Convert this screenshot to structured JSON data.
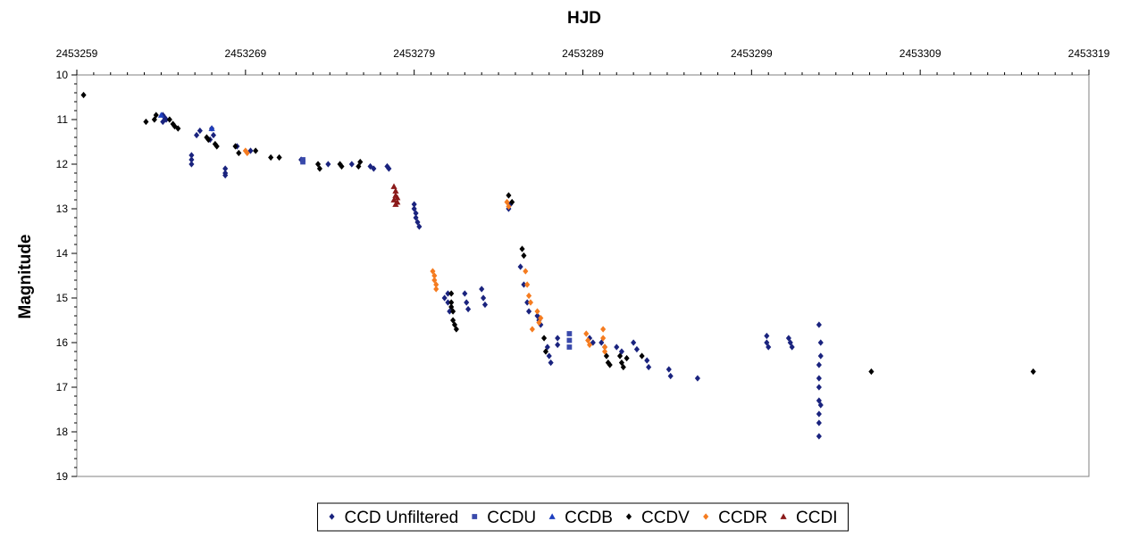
{
  "chart_data": {
    "type": "scatter",
    "title": "",
    "xlabel": "HJD",
    "ylabel": "Magnitude",
    "x_axis_position": "top",
    "y_axis_inverted": true,
    "xlim": [
      2453259,
      2453319
    ],
    "ylim": [
      10,
      19
    ],
    "xticks": [
      2453259,
      2453269,
      2453279,
      2453289,
      2453299,
      2453309,
      2453319
    ],
    "x_minor_step": 1,
    "yticks": [
      10,
      11,
      12,
      13,
      14,
      15,
      16,
      17,
      18,
      19
    ],
    "y_minor_step": 0.2,
    "grid": false,
    "legend_placement": "bottom-center",
    "series": [
      {
        "name": "CCD Unfiltered",
        "marker": "diamond",
        "color": "#1a237e",
        "points": [
          [
            2453264.1,
            10.9
          ],
          [
            2453264.3,
            11.0
          ],
          [
            2453264.1,
            11.05
          ],
          [
            2453264.2,
            10.95
          ],
          [
            2453266.1,
            11.35
          ],
          [
            2453266.3,
            11.25
          ],
          [
            2453267.0,
            11.2
          ],
          [
            2453267.1,
            11.35
          ],
          [
            2453266.9,
            11.45
          ],
          [
            2453265.8,
            11.8
          ],
          [
            2453265.8,
            11.9
          ],
          [
            2453265.8,
            12.0
          ],
          [
            2453267.8,
            12.1
          ],
          [
            2453267.8,
            12.2
          ],
          [
            2453267.8,
            12.25
          ],
          [
            2453268.5,
            11.6
          ],
          [
            2453269.3,
            11.7
          ],
          [
            2453272.3,
            11.9
          ],
          [
            2453273.9,
            12.0
          ],
          [
            2453275.3,
            12.0
          ],
          [
            2453276.4,
            12.05
          ],
          [
            2453276.6,
            12.1
          ],
          [
            2453277.4,
            12.05
          ],
          [
            2453277.5,
            12.1
          ],
          [
            2453279.0,
            12.9
          ],
          [
            2453279.0,
            13.0
          ],
          [
            2453279.1,
            13.1
          ],
          [
            2453279.1,
            13.2
          ],
          [
            2453279.2,
            13.3
          ],
          [
            2453279.3,
            13.4
          ],
          [
            2453281.0,
            14.9
          ],
          [
            2453281.0,
            15.1
          ],
          [
            2453281.1,
            15.3
          ],
          [
            2453280.8,
            15.0
          ],
          [
            2453282.0,
            14.9
          ],
          [
            2453282.1,
            15.1
          ],
          [
            2453282.2,
            15.25
          ],
          [
            2453283.0,
            14.8
          ],
          [
            2453283.1,
            15.0
          ],
          [
            2453283.2,
            15.15
          ],
          [
            2453284.6,
            13.0
          ],
          [
            2453284.7,
            12.9
          ],
          [
            2453285.3,
            14.3
          ],
          [
            2453285.5,
            14.7
          ],
          [
            2453285.7,
            15.1
          ],
          [
            2453285.8,
            15.3
          ],
          [
            2453286.3,
            15.4
          ],
          [
            2453286.4,
            15.5
          ],
          [
            2453286.5,
            15.6
          ],
          [
            2453286.9,
            16.1
          ],
          [
            2453287.0,
            16.3
          ],
          [
            2453287.1,
            16.45
          ],
          [
            2453287.5,
            15.9
          ],
          [
            2453287.5,
            16.05
          ],
          [
            2453289.4,
            15.9
          ],
          [
            2453289.6,
            16.0
          ],
          [
            2453290.1,
            16.0
          ],
          [
            2453290.3,
            16.1
          ],
          [
            2453291.0,
            16.1
          ],
          [
            2453291.3,
            16.2
          ],
          [
            2453292.0,
            16.0
          ],
          [
            2453292.2,
            16.15
          ],
          [
            2453292.8,
            16.4
          ],
          [
            2453292.9,
            16.55
          ],
          [
            2453294.1,
            16.6
          ],
          [
            2453294.2,
            16.75
          ],
          [
            2453295.8,
            16.8
          ],
          [
            2453299.9,
            15.85
          ],
          [
            2453299.9,
            16.0
          ],
          [
            2453300.0,
            16.1
          ],
          [
            2453301.2,
            15.9
          ],
          [
            2453301.3,
            16.0
          ],
          [
            2453301.4,
            16.1
          ],
          [
            2453303.0,
            15.6
          ],
          [
            2453303.0,
            16.5
          ],
          [
            2453303.0,
            16.8
          ],
          [
            2453303.0,
            17.0
          ],
          [
            2453303.0,
            17.3
          ],
          [
            2453303.0,
            17.6
          ],
          [
            2453303.0,
            17.8
          ],
          [
            2453303.0,
            18.1
          ],
          [
            2453303.1,
            16.0
          ],
          [
            2453303.1,
            16.3
          ],
          [
            2453303.1,
            17.4
          ]
        ]
      },
      {
        "name": "CCDU",
        "marker": "square",
        "color": "#3949ab",
        "points": [
          [
            2453272.4,
            11.95
          ],
          [
            2453272.4,
            11.9
          ],
          [
            2453288.2,
            15.8
          ],
          [
            2453288.2,
            15.95
          ],
          [
            2453288.2,
            16.1
          ]
        ]
      },
      {
        "name": "CCDB",
        "marker": "triangle",
        "color": "#1e3fbf",
        "points": [
          [
            2453264.0,
            10.9
          ],
          [
            2453267.0,
            11.2
          ]
        ]
      },
      {
        "name": "CCDV",
        "marker": "diamond",
        "color": "#000000",
        "points": [
          [
            2453259.4,
            10.45
          ],
          [
            2453263.1,
            11.05
          ],
          [
            2453263.6,
            11.0
          ],
          [
            2453263.7,
            10.9
          ],
          [
            2453264.5,
            11.0
          ],
          [
            2453264.7,
            11.1
          ],
          [
            2453264.8,
            11.15
          ],
          [
            2453265.0,
            11.2
          ],
          [
            2453266.7,
            11.4
          ],
          [
            2453266.8,
            11.45
          ],
          [
            2453267.2,
            11.55
          ],
          [
            2453267.3,
            11.6
          ],
          [
            2453268.4,
            11.6
          ],
          [
            2453268.6,
            11.75
          ],
          [
            2453269.6,
            11.7
          ],
          [
            2453270.5,
            11.85
          ],
          [
            2453271.0,
            11.85
          ],
          [
            2453273.3,
            12.0
          ],
          [
            2453273.4,
            12.1
          ],
          [
            2453274.6,
            12.0
          ],
          [
            2453274.7,
            12.05
          ],
          [
            2453275.7,
            12.05
          ],
          [
            2453275.8,
            11.95
          ],
          [
            2453281.2,
            14.9
          ],
          [
            2453281.2,
            15.1
          ],
          [
            2453281.3,
            15.3
          ],
          [
            2453281.3,
            15.5
          ],
          [
            2453281.4,
            15.6
          ],
          [
            2453281.5,
            15.7
          ],
          [
            2453281.2,
            15.2
          ],
          [
            2453284.6,
            12.7
          ],
          [
            2453284.8,
            12.85
          ],
          [
            2453285.4,
            13.9
          ],
          [
            2453285.5,
            14.05
          ],
          [
            2453286.7,
            15.9
          ],
          [
            2453286.8,
            16.2
          ],
          [
            2453290.4,
            16.3
          ],
          [
            2453290.5,
            16.45
          ],
          [
            2453290.6,
            16.5
          ],
          [
            2453291.2,
            16.3
          ],
          [
            2453291.3,
            16.45
          ],
          [
            2453291.4,
            16.55
          ],
          [
            2453291.6,
            16.35
          ],
          [
            2453292.5,
            16.3
          ],
          [
            2453306.1,
            16.65
          ],
          [
            2453315.7,
            16.65
          ]
        ]
      },
      {
        "name": "CCDR",
        "marker": "diamond",
        "color": "#f57c20",
        "points": [
          [
            2453269.0,
            11.7
          ],
          [
            2453269.1,
            11.75
          ],
          [
            2453280.1,
            14.4
          ],
          [
            2453280.2,
            14.5
          ],
          [
            2453280.2,
            14.6
          ],
          [
            2453280.3,
            14.7
          ],
          [
            2453280.3,
            14.8
          ],
          [
            2453284.5,
            12.85
          ],
          [
            2453284.6,
            12.95
          ],
          [
            2453285.6,
            14.4
          ],
          [
            2453285.7,
            14.7
          ],
          [
            2453285.8,
            14.95
          ],
          [
            2453285.9,
            15.1
          ],
          [
            2453286.0,
            15.7
          ],
          [
            2453286.3,
            15.3
          ],
          [
            2453286.4,
            15.55
          ],
          [
            2453286.5,
            15.45
          ],
          [
            2453289.2,
            15.8
          ],
          [
            2453289.3,
            15.95
          ],
          [
            2453289.4,
            16.05
          ],
          [
            2453290.2,
            15.7
          ],
          [
            2453290.2,
            15.9
          ],
          [
            2453290.3,
            16.1
          ],
          [
            2453290.3,
            16.2
          ]
        ]
      },
      {
        "name": "CCDI",
        "marker": "triangle",
        "color": "#8b1a1a",
        "points": [
          [
            2453277.8,
            12.5
          ],
          [
            2453277.9,
            12.6
          ],
          [
            2453277.9,
            12.7
          ],
          [
            2453278.0,
            12.75
          ],
          [
            2453277.8,
            12.8
          ],
          [
            2453278.0,
            12.85
          ],
          [
            2453277.9,
            12.9
          ]
        ]
      }
    ]
  }
}
